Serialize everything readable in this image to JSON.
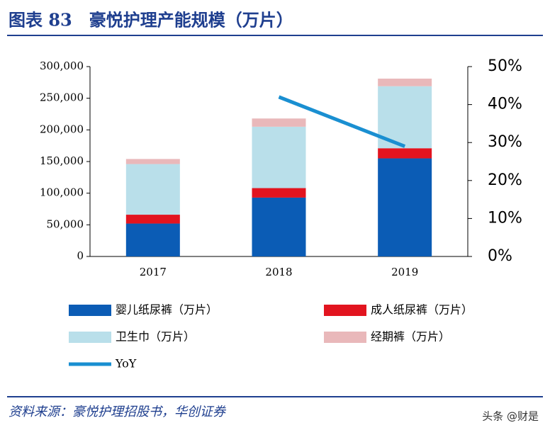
{
  "chart_data": {
    "type": "bar",
    "stacked": true,
    "title": "图表 83　豪悦护理产能规模（万片）",
    "source": "资料来源：豪悦护理招股书，华创证券",
    "watermark": "头条 @财是",
    "categories": [
      "2017",
      "2018",
      "2019"
    ],
    "series": [
      {
        "name": "婴儿纸尿裤（万片）",
        "color": "#0b5cb5",
        "values": [
          52000,
          93000,
          155000
        ]
      },
      {
        "name": "成人纸尿裤（万片）",
        "color": "#e2141f",
        "values": [
          14000,
          15000,
          16000
        ]
      },
      {
        "name": "卫生巾（万片）",
        "color": "#b9dfea",
        "values": [
          80000,
          97000,
          98000
        ]
      },
      {
        "name": "经期裤（万片）",
        "color": "#e9b8ba",
        "values": [
          8000,
          13000,
          12000
        ]
      },
      {
        "name": "YoY",
        "color": "#1a8fd1",
        "type": "line",
        "axis": "y2",
        "values": [
          null,
          42,
          29
        ]
      }
    ],
    "ylim": [
      0,
      300000
    ],
    "yticks": [
      0,
      {
        "value": 50000,
        "label": "50,000"
      },
      {
        "value": 100000,
        "label": "100,000"
      },
      {
        "value": 150000,
        "label": "150,000"
      },
      {
        "value": 200000,
        "label": "200,000"
      },
      {
        "value": 250000,
        "label": "250,000"
      },
      {
        "value": 300000,
        "label": "300,000"
      }
    ],
    "y2lim": [
      0,
      50
    ],
    "y2ticks": [
      {
        "value": 0,
        "label": "0%"
      },
      {
        "value": 10,
        "label": "10%"
      },
      {
        "value": 20,
        "label": "20%"
      },
      {
        "value": 30,
        "label": "30%"
      },
      {
        "value": 40,
        "label": "40%"
      },
      {
        "value": 50,
        "label": "50%"
      }
    ],
    "grid": false
  }
}
